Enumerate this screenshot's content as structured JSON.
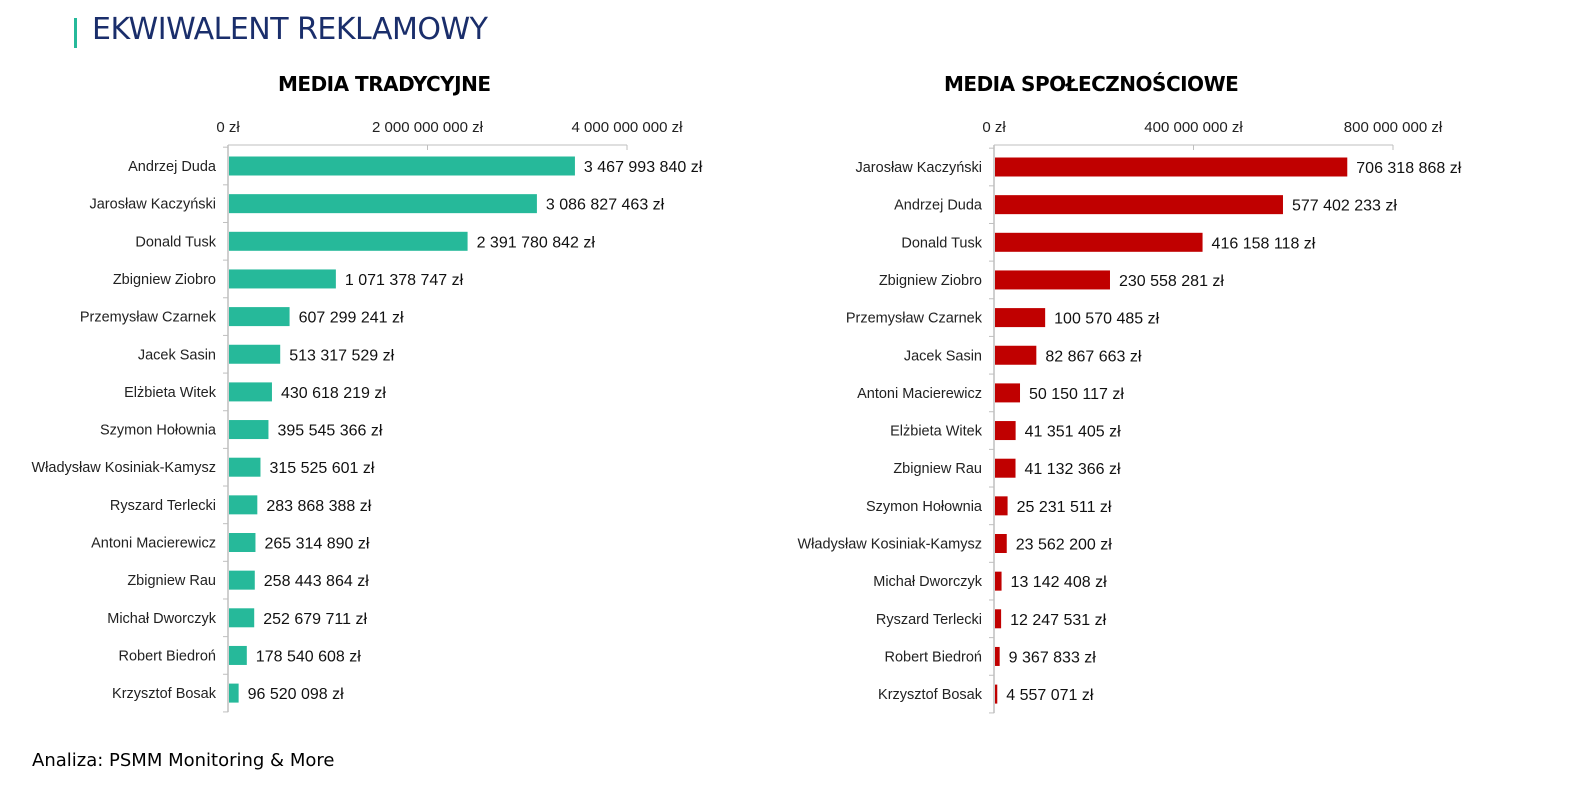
{
  "header": {
    "title": "EKWIWALENT REKLAMOWY"
  },
  "footer": {
    "text": "Analiza: PSMM Monitoring & More"
  },
  "colors": {
    "traditional": "#26b99a",
    "social": "#c00000",
    "title": "#1a2e6b"
  },
  "chart_data": [
    {
      "type": "bar",
      "orientation": "horizontal",
      "title": "MEDIA TRADYCYJNE",
      "xlim": [
        0,
        4000000000
      ],
      "ticks": [
        {
          "value": 0,
          "label": "0 zł"
        },
        {
          "value": 2000000000,
          "label": "2 000 000 000 zł"
        },
        {
          "value": 4000000000,
          "label": "4 000 000 000 zł"
        }
      ],
      "categories": [
        "Andrzej Duda",
        "Jarosław Kaczyński",
        "Donald Tusk",
        "Zbigniew Ziobro",
        "Przemysław Czarnek",
        "Jacek Sasin",
        "Elżbieta Witek",
        "Szymon Hołownia",
        "Władysław Kosiniak-Kamysz",
        "Ryszard Terlecki",
        "Antoni Macierewicz",
        "Zbigniew Rau",
        "Michał Dworczyk",
        "Robert Biedroń",
        "Krzysztof Bosak"
      ],
      "values": [
        3467993840,
        3086827463,
        2391780842,
        1071378747,
        607299241,
        513317529,
        430618219,
        395545366,
        315525601,
        283868388,
        265314890,
        258443864,
        252679711,
        178540608,
        96520098
      ],
      "labels": [
        "3 467 993 840 zł",
        "3 086 827 463 zł",
        "2 391 780 842 zł",
        "1 071 378 747 zł",
        "607 299 241 zł",
        "513 317 529 zł",
        "430 618 219 zł",
        "395 545 366 zł",
        "315 525 601 zł",
        "283 868 388 zł",
        "265 314 890 zł",
        "258 443 864 zł",
        "252 679 711 zł",
        "178 540 608 zł",
        "96 520 098 zł"
      ],
      "color": "#26b99a"
    },
    {
      "type": "bar",
      "orientation": "horizontal",
      "title": "MEDIA SPOŁECZNOŚCIOWE",
      "xlim": [
        0,
        800000000
      ],
      "ticks": [
        {
          "value": 0,
          "label": "0 zł"
        },
        {
          "value": 400000000,
          "label": "400 000 000 zł"
        },
        {
          "value": 800000000,
          "label": "800 000 000 zł"
        }
      ],
      "categories": [
        "Jarosław Kaczyński",
        "Andrzej Duda",
        "Donald Tusk",
        "Zbigniew Ziobro",
        "Przemysław Czarnek",
        "Jacek Sasin",
        "Antoni Macierewicz",
        "Elżbieta Witek",
        "Zbigniew Rau",
        "Szymon Hołownia",
        "Władysław Kosiniak-Kamysz",
        "Michał Dworczyk",
        "Ryszard Terlecki",
        "Robert Biedroń",
        "Krzysztof Bosak"
      ],
      "values": [
        706318868,
        577402233,
        416158118,
        230558281,
        100570485,
        82867663,
        50150117,
        41351405,
        41132366,
        25231511,
        23562200,
        13142408,
        12247531,
        9367833,
        4557071
      ],
      "labels": [
        "706 318 868 zł",
        "577 402 233 zł",
        "416 158 118 zł",
        "230 558 281 zł",
        "100 570 485 zł",
        "82 867 663 zł",
        "50 150 117 zł",
        "41 351 405 zł",
        "41 132 366 zł",
        "25 231 511 zł",
        "23 562 200 zł",
        "13 142 408 zł",
        "12 247 531 zł",
        "9 367 833 zł",
        "4 557 071 zł"
      ],
      "color": "#c00000"
    }
  ]
}
